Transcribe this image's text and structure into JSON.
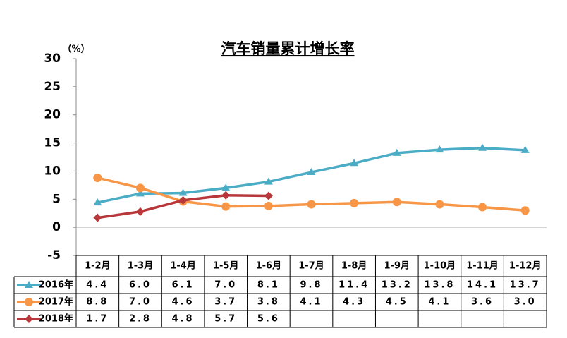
{
  "chart_data": {
    "type": "line",
    "title": "汽车销量累计增长率",
    "y_unit": "（%）",
    "categories": [
      "1-2月",
      "1-3月",
      "1-4月",
      "1-5月",
      "1-6月",
      "1-7月",
      "1-8月",
      "1-9月",
      "1-10月",
      "1-11月",
      "1-12月"
    ],
    "series": [
      {
        "name": "2016年",
        "color": "#4bacc6",
        "marker": "triangle",
        "values": [
          4.4,
          6.0,
          6.1,
          7.0,
          8.1,
          9.8,
          11.4,
          13.2,
          13.8,
          14.1,
          13.7
        ],
        "value_labels": [
          "4.4",
          "6.0",
          "6.1",
          "7.0",
          "8.1",
          "9.8",
          "11.4",
          "13.2",
          "13.8",
          "14.1",
          "13.7"
        ]
      },
      {
        "name": "2017年",
        "color": "#f79646",
        "marker": "circle",
        "values": [
          8.8,
          7.0,
          4.6,
          3.7,
          3.8,
          4.1,
          4.3,
          4.5,
          4.1,
          3.6,
          3.0
        ],
        "value_labels": [
          "8.8",
          "7.0",
          "4.6",
          "3.7",
          "3.8",
          "4.1",
          "4.3",
          "4.5",
          "4.1",
          "3.6",
          "3.0"
        ]
      },
      {
        "name": "2018年",
        "color": "#b8373a",
        "marker": "diamond",
        "values": [
          1.7,
          2.8,
          4.8,
          5.7,
          5.6,
          null,
          null,
          null,
          null,
          null,
          null
        ],
        "value_labels": [
          "1.7",
          "2.8",
          "4.8",
          "5.7",
          "5.6",
          null,
          null,
          null,
          null,
          null,
          null
        ]
      }
    ],
    "ylim": [
      -5,
      30
    ],
    "yticks": [
      -5,
      0,
      5,
      10,
      15,
      20,
      25,
      30
    ],
    "grid": false
  }
}
